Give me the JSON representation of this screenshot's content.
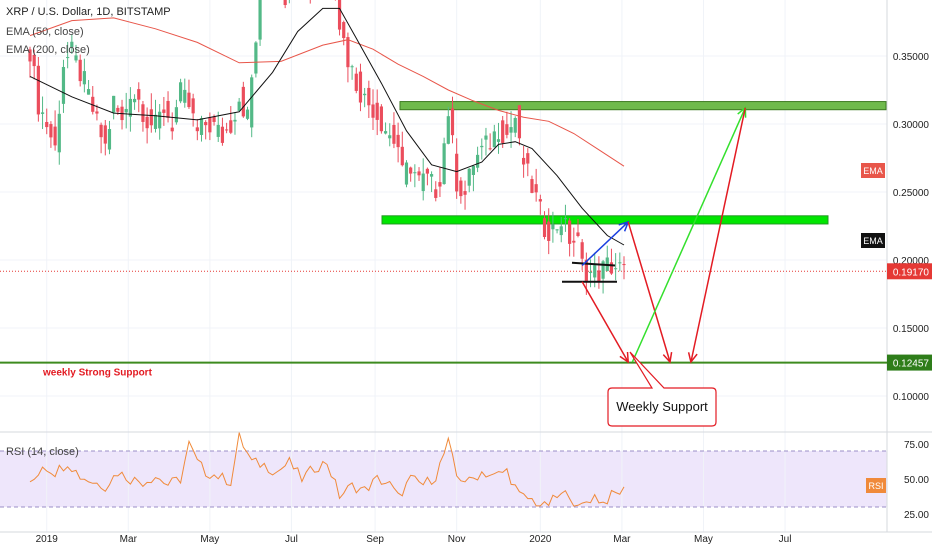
{
  "header": {
    "symbol_line": "XRP / U.S. Dollar, 1D, BITSTAMP",
    "ema_line_1": "EMA (50, close)",
    "ema_line_2": "EMA (200, close)"
  },
  "rsi_header": "RSI (14, close)",
  "colors": {
    "up": "#53b987",
    "down": "#eb4d5c",
    "green_zone": "#7cc243",
    "bright_zone": "#00e600",
    "support_line": "#3d8b1f",
    "ema_fast": "#111111",
    "ema_slow": "#e8564a",
    "rsi_line": "#f08a3a",
    "rsi_band": "#eee6fb",
    "price_line": "#e53935"
  },
  "chart_data": {
    "type": "candlestick",
    "x_labels": [
      "2019",
      "Mar",
      "May",
      "Jul",
      "Sep",
      "Nov",
      "2020",
      "Mar",
      "May",
      "Jul"
    ],
    "y_ticks": [
      "0.35000",
      "0.30000",
      "0.25000",
      "0.20000",
      "0.15000",
      "0.10000"
    ],
    "ylim": [
      0.07,
      0.39
    ],
    "current_price": 0.1917,
    "current_price_label": "0.19170",
    "support_level": 0.12457,
    "support_label": "0.12457",
    "ema_badge_1": "EMA",
    "ema_badge_2": "EMA",
    "resistance_zone": {
      "from": "Sep",
      "to": "end",
      "low": 0.3105,
      "high": 0.3165
    },
    "support_zone": {
      "from": "Aug",
      "to": "end",
      "low": 0.2265,
      "high": 0.2325
    },
    "annotations": {
      "strong_support": "weekly Strong Support",
      "callout": "Weekly Support"
    },
    "price_path": [
      [
        0,
        0.355
      ],
      [
        2,
        0.315
      ],
      [
        4,
        0.3
      ],
      [
        6,
        0.282
      ],
      [
        8,
        0.345
      ],
      [
        10,
        0.352
      ],
      [
        13,
        0.33
      ],
      [
        16,
        0.3
      ],
      [
        18,
        0.283
      ],
      [
        20,
        0.316
      ],
      [
        22,
        0.3
      ],
      [
        24,
        0.325
      ],
      [
        26,
        0.318
      ],
      [
        28,
        0.303
      ],
      [
        30,
        0.298
      ],
      [
        32,
        0.312
      ],
      [
        34,
        0.3
      ],
      [
        36,
        0.322
      ],
      [
        38,
        0.313
      ],
      [
        40,
        0.293
      ],
      [
        42,
        0.3
      ],
      [
        44,
        0.298
      ],
      [
        46,
        0.29
      ],
      [
        48,
        0.3
      ],
      [
        50,
        0.32
      ],
      [
        52,
        0.305
      ],
      [
        55,
        0.39
      ],
      [
        58,
        0.41
      ],
      [
        61,
        0.395
      ],
      [
        64,
        0.412
      ],
      [
        67,
        0.402
      ],
      [
        70,
        0.42
      ],
      [
        73,
        0.405
      ],
      [
        74,
        0.375
      ],
      [
        76,
        0.348
      ],
      [
        78,
        0.33
      ],
      [
        80,
        0.318
      ],
      [
        82,
        0.312
      ],
      [
        84,
        0.302
      ],
      [
        86,
        0.292
      ],
      [
        88,
        0.284
      ],
      [
        89,
        0.262
      ],
      [
        91,
        0.27
      ],
      [
        93,
        0.258
      ],
      [
        95,
        0.259
      ],
      [
        97,
        0.252
      ],
      [
        98,
        0.262
      ],
      [
        100,
        0.31
      ],
      [
        102,
        0.258
      ],
      [
        104,
        0.248
      ],
      [
        106,
        0.272
      ],
      [
        108,
        0.28
      ],
      [
        110,
        0.287
      ],
      [
        112,
        0.297
      ],
      [
        114,
        0.292
      ],
      [
        116,
        0.305
      ],
      [
        117,
        0.282
      ],
      [
        119,
        0.262
      ],
      [
        121,
        0.245
      ],
      [
        123,
        0.224
      ],
      [
        125,
        0.222
      ],
      [
        127,
        0.23
      ],
      [
        129,
        0.216
      ],
      [
        131,
        0.212
      ],
      [
        132,
        0.196
      ],
      [
        134,
        0.19
      ],
      [
        136,
        0.191
      ],
      [
        138,
        0.196
      ],
      [
        140,
        0.195
      ],
      [
        142,
        0.1917
      ]
    ],
    "ema_50": [
      [
        0,
        0.335
      ],
      [
        10,
        0.32
      ],
      [
        20,
        0.308
      ],
      [
        30,
        0.306
      ],
      [
        40,
        0.303
      ],
      [
        50,
        0.309
      ],
      [
        58,
        0.338
      ],
      [
        64,
        0.368
      ],
      [
        70,
        0.385
      ],
      [
        74,
        0.385
      ],
      [
        78,
        0.363
      ],
      [
        84,
        0.33
      ],
      [
        90,
        0.295
      ],
      [
        96,
        0.27
      ],
      [
        102,
        0.265
      ],
      [
        108,
        0.272
      ],
      [
        112,
        0.285
      ],
      [
        116,
        0.287
      ],
      [
        120,
        0.282
      ],
      [
        126,
        0.262
      ],
      [
        132,
        0.238
      ],
      [
        138,
        0.218
      ],
      [
        142,
        0.211
      ]
    ],
    "ema_200": [
      [
        0,
        0.365
      ],
      [
        10,
        0.376
      ],
      [
        20,
        0.378
      ],
      [
        30,
        0.37
      ],
      [
        40,
        0.36
      ],
      [
        50,
        0.345
      ],
      [
        60,
        0.346
      ],
      [
        70,
        0.358
      ],
      [
        76,
        0.362
      ],
      [
        82,
        0.355
      ],
      [
        88,
        0.344
      ],
      [
        94,
        0.335
      ],
      [
        100,
        0.325
      ],
      [
        106,
        0.317
      ],
      [
        112,
        0.31
      ],
      [
        118,
        0.305
      ],
      [
        124,
        0.302
      ],
      [
        130,
        0.293
      ],
      [
        136,
        0.281
      ],
      [
        142,
        0.269
      ]
    ],
    "rsi": {
      "ticks": [
        "75.00",
        "50.00",
        "25.00"
      ],
      "upper": 70,
      "lower": 30,
      "current_badge": "RSI",
      "values": [
        [
          0,
          45
        ],
        [
          3,
          60
        ],
        [
          6,
          55
        ],
        [
          9,
          62
        ],
        [
          12,
          52
        ],
        [
          15,
          48
        ],
        [
          18,
          45
        ],
        [
          21,
          55
        ],
        [
          24,
          50
        ],
        [
          27,
          48
        ],
        [
          30,
          52
        ],
        [
          33,
          46
        ],
        [
          36,
          50
        ],
        [
          38,
          75
        ],
        [
          40,
          62
        ],
        [
          42,
          55
        ],
        [
          45,
          52
        ],
        [
          48,
          48
        ],
        [
          50,
          80
        ],
        [
          53,
          62
        ],
        [
          56,
          60
        ],
        [
          59,
          55
        ],
        [
          62,
          62
        ],
        [
          65,
          50
        ],
        [
          68,
          58
        ],
        [
          71,
          62
        ],
        [
          74,
          38
        ],
        [
          77,
          45
        ],
        [
          80,
          42
        ],
        [
          83,
          50
        ],
        [
          86,
          46
        ],
        [
          88,
          37
        ],
        [
          91,
          50
        ],
        [
          94,
          46
        ],
        [
          97,
          52
        ],
        [
          100,
          76
        ],
        [
          102,
          52
        ],
        [
          105,
          48
        ],
        [
          108,
          55
        ],
        [
          111,
          52
        ],
        [
          114,
          56
        ],
        [
          117,
          38
        ],
        [
          120,
          35
        ],
        [
          123,
          30
        ],
        [
          126,
          37
        ],
        [
          129,
          40
        ],
        [
          131,
          28
        ],
        [
          133,
          34
        ],
        [
          135,
          38
        ],
        [
          137,
          33
        ],
        [
          139,
          38
        ],
        [
          142,
          42
        ]
      ]
    },
    "trade_path": {
      "blue_up": [
        [
          132,
          0.196
        ],
        [
          143,
          0.228
        ]
      ],
      "red_down_1": [
        [
          143,
          0.228
        ],
        [
          153,
          0.125
        ]
      ],
      "green_up": [
        [
          144,
          0.125
        ],
        [
          171,
          0.312
        ]
      ],
      "red_down_2": [
        [
          171,
          0.312
        ],
        [
          158,
          0.125
        ]
      ],
      "red_early": [
        [
          132,
          0.184
        ],
        [
          143,
          0.125
        ]
      ]
    }
  }
}
